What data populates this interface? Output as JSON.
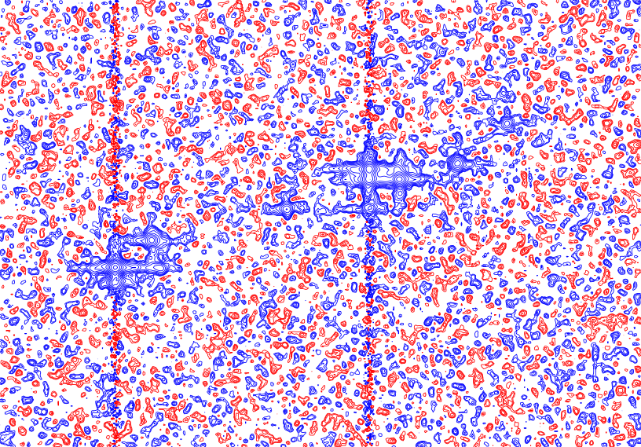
{
  "chart_data": {
    "type": "contour",
    "tick_labels": false,
    "xlim": [
      0,
      100
    ],
    "ylim": [
      0,
      100
    ],
    "colors": [
      "#0000ff",
      "#ff0000"
    ],
    "peaks": {
      "x": [
        57.6,
        57.6,
        62.3,
        71.4,
        44.7,
        57.6,
        18.0,
        18.0,
        23.7,
        79.0,
        25.0
      ],
      "y": [
        62.2,
        59.9,
        59.9,
        63.4,
        53.3,
        53.4,
        40.2,
        36.8,
        46.2,
        72.4,
        40.0
      ],
      "intensity": [
        100,
        60,
        70,
        25,
        20,
        20,
        90,
        30,
        35,
        15,
        12
      ]
    }
  }
}
